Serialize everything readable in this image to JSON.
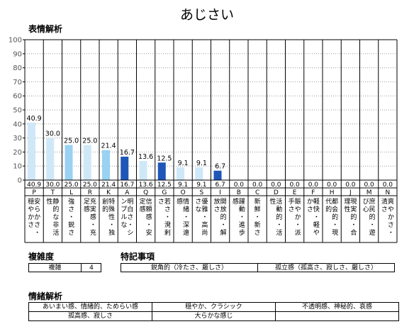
{
  "page": {
    "title": "あじさい"
  },
  "sections": {
    "expression": "表情解析",
    "complexity": "複雑度",
    "special": "特記事項",
    "emotion": "情緒解析"
  },
  "chart_data": {
    "type": "bar",
    "title": "表情解析",
    "ylim": [
      0,
      100
    ],
    "yticks": [
      0,
      10,
      20,
      30,
      40,
      50,
      60,
      70,
      80,
      90,
      100
    ],
    "grid": true,
    "categories": [
      {
        "code": "P",
        "label": "安らかさ・穏やかさ",
        "value": 40.9,
        "color": "#cfe8f8"
      },
      {
        "code": "T",
        "label": "静的な非活性",
        "value": 30.0,
        "color": "#cfe8f8"
      },
      {
        "code": "L",
        "label": "強さ・鋭さ",
        "value": 25.0,
        "color": "#99d2f2"
      },
      {
        "code": "R",
        "label": "充実感・充足感",
        "value": 25.0,
        "color": "#cfe8f8"
      },
      {
        "code": "K",
        "label": "特殊性・独創的",
        "value": 21.4,
        "color": "#99d2f2"
      },
      {
        "code": "A",
        "label": "明白さ・シンプルな",
        "value": 16.7,
        "color": "#1f57b8"
      },
      {
        "code": "Q",
        "label": "信頼感・安定感",
        "value": 13.6,
        "color": "#cfe8f8"
      },
      {
        "code": "G",
        "label": "若さ・溌剌さ",
        "value": 12.5,
        "color": "#1f57b8"
      },
      {
        "code": "O",
        "label": "情緒・深遠感",
        "value": 9.1,
        "color": "#cfe8f8"
      },
      {
        "code": "S",
        "label": "優雅・高尚さな",
        "value": 9.1,
        "color": "#cfe8f8"
      },
      {
        "code": "I",
        "label": "開放的・解放さ",
        "value": 6.7,
        "color": "#1f57b8"
      },
      {
        "code": "B",
        "label": "躍動・進歩感",
        "value": 0.0,
        "color": "#cfe8f8"
      },
      {
        "code": "C",
        "label": "新鮮・新さ",
        "value": 0.0,
        "color": "#cfe8f8"
      },
      {
        "code": "D",
        "label": "活動的・活性",
        "value": 0.0,
        "color": "#cfe8f8"
      },
      {
        "code": "E",
        "label": "賑やか・派手さ",
        "value": 0.0,
        "color": "#cfe8f8"
      },
      {
        "code": "F",
        "label": "軽快・軽やかさ",
        "value": 0.0,
        "color": "#cfe8f8"
      },
      {
        "code": "H",
        "label": "都会的・現代的",
        "value": 0.0,
        "color": "#cfe8f8"
      },
      {
        "code": "J",
        "label": "現実的・合理性",
        "value": 0.0,
        "color": "#cfe8f8"
      },
      {
        "code": "M",
        "label": "庶民的・遊び心",
        "value": 0.0,
        "color": "#cfe8f8"
      },
      {
        "code": "N",
        "label": "爽やかさ・清さ",
        "value": 0.0,
        "color": "#cfe8f8"
      }
    ]
  },
  "complexity": {
    "label": "複雑",
    "value": "4"
  },
  "special_notes": [
    "鋭角的（冷たさ、厳しさ）",
    "孤立感（孤高さ、寂しさ、厳しさ）"
  ],
  "emotion": {
    "row1": [
      "あいまい感、情緒的、ためらい感",
      "穏やか、クラシック",
      "不透明感、神秘的、哀感"
    ],
    "row2": [
      "孤高感、寂しさ",
      "大らかな感じ"
    ]
  }
}
